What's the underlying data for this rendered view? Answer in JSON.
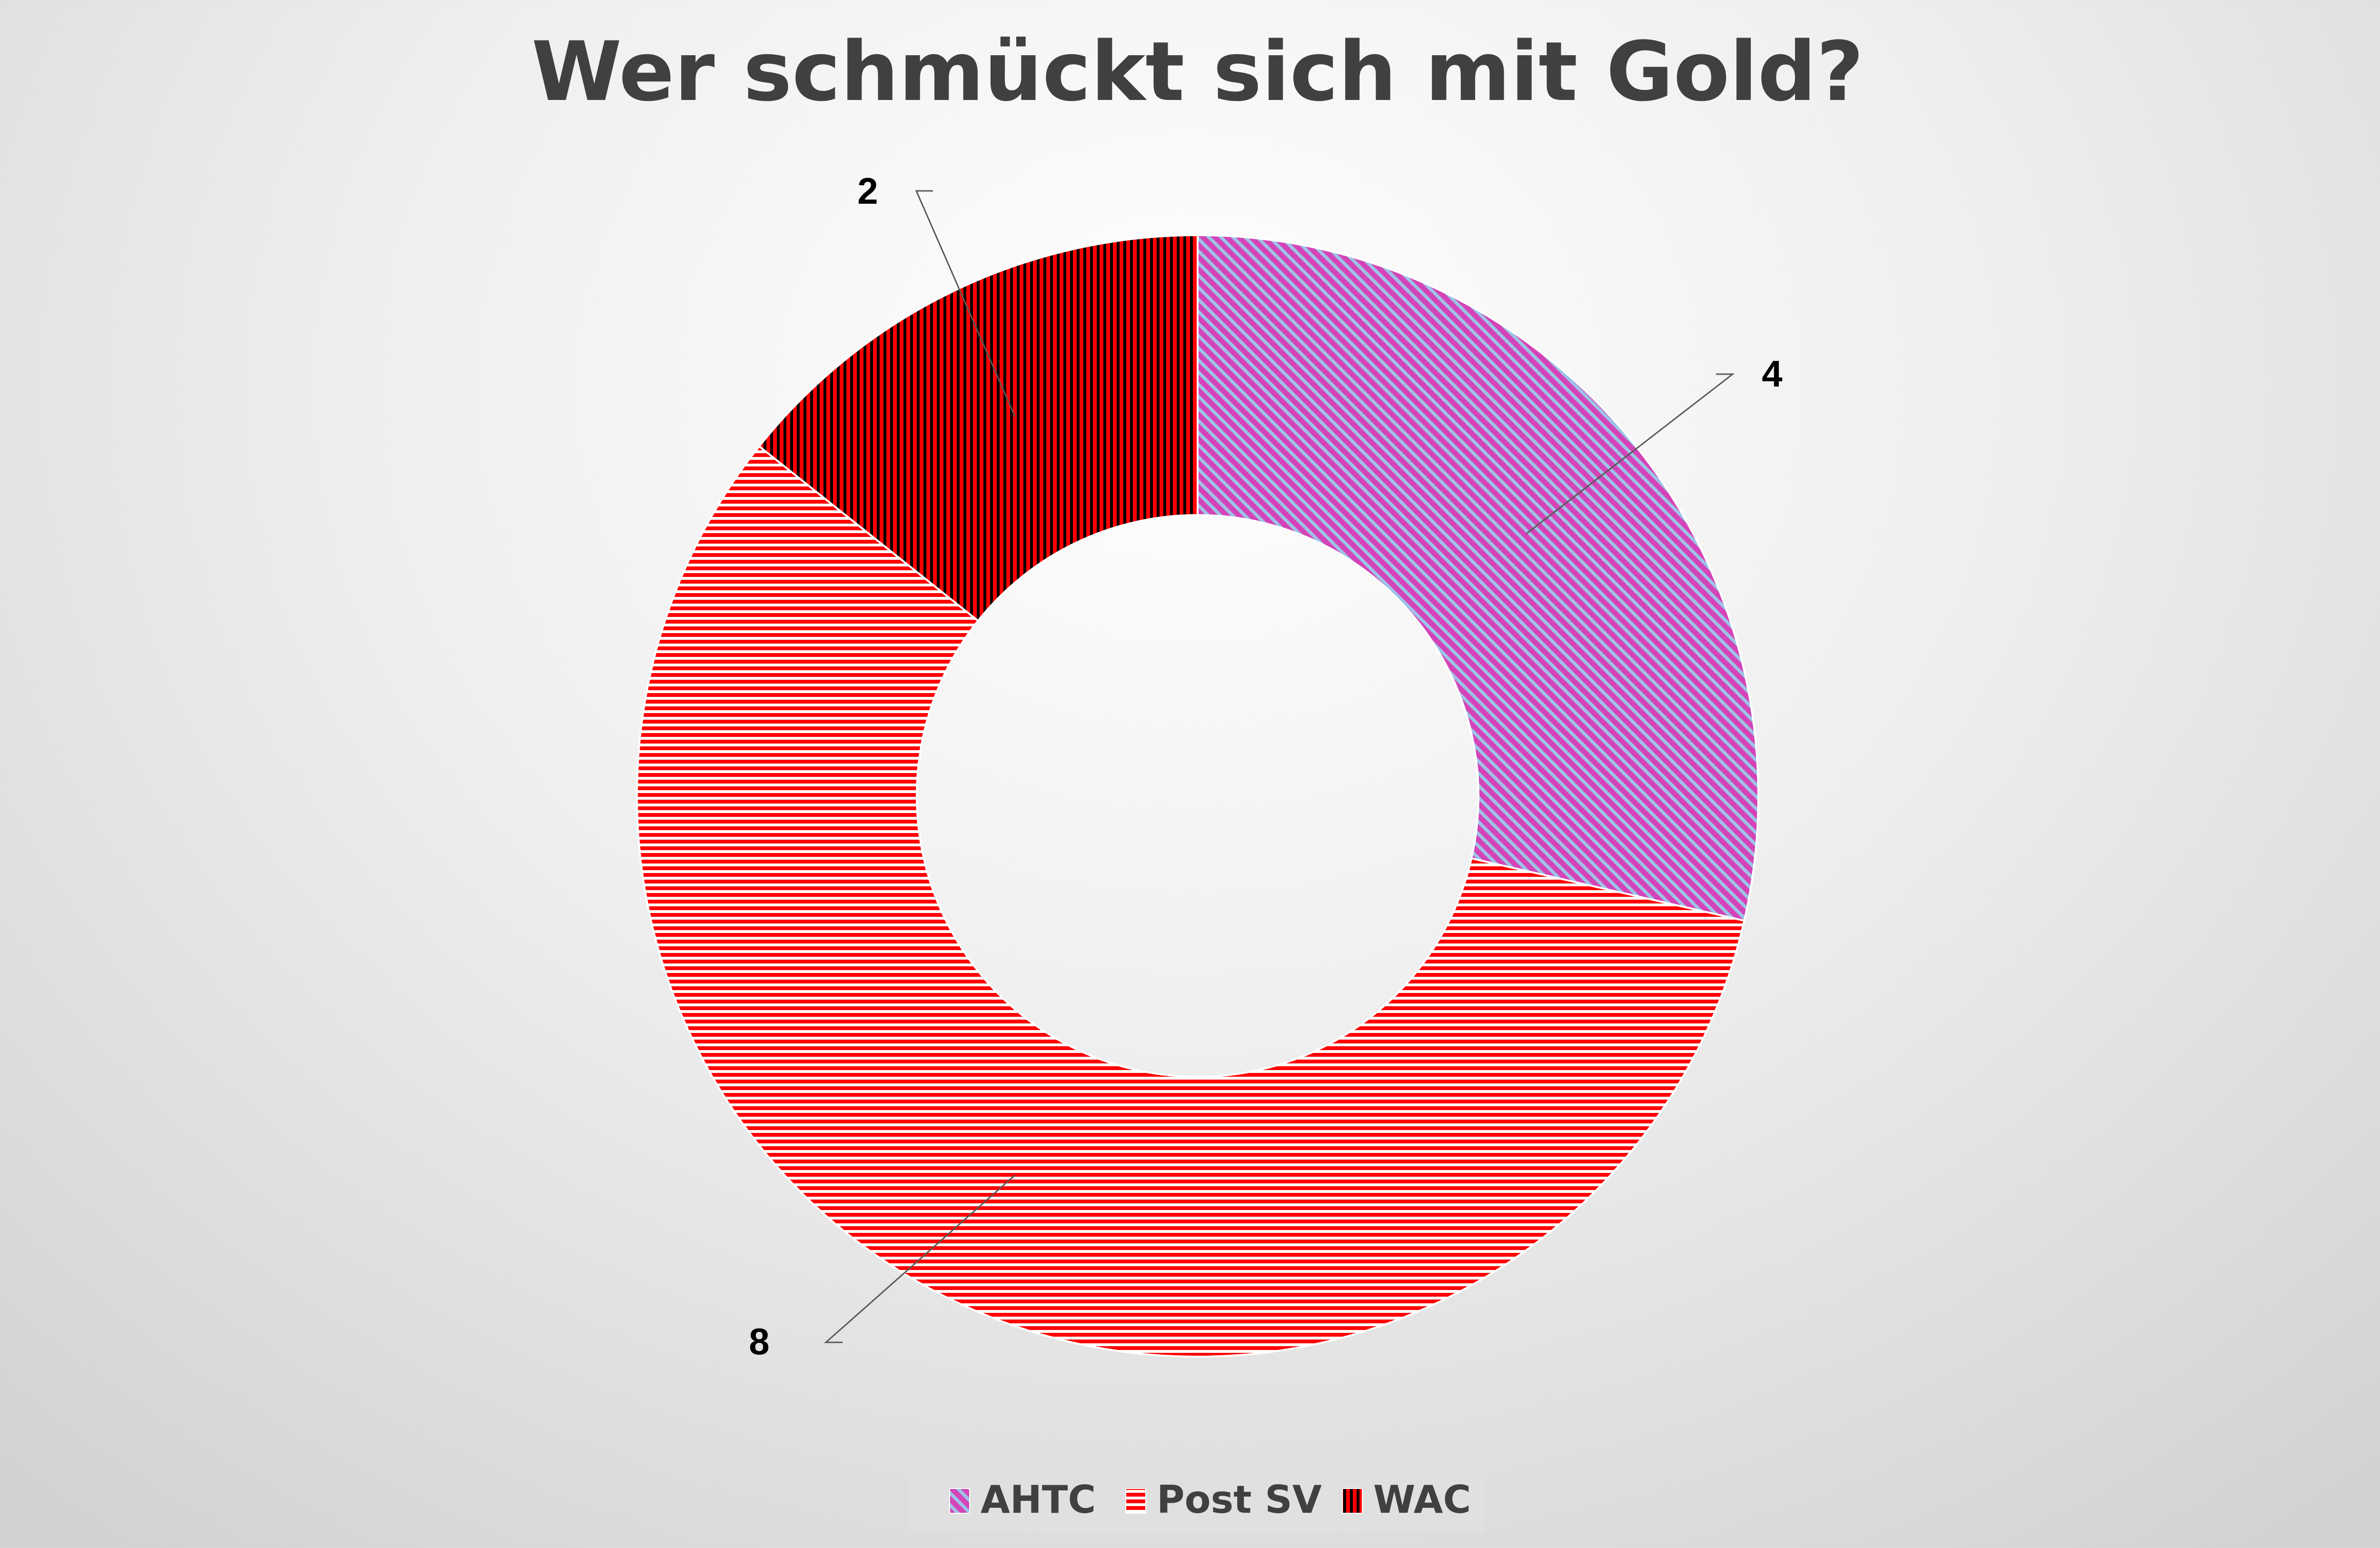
{
  "chart_data": {
    "type": "pie",
    "variant": "doughnut",
    "title": "Wer schmückt sich mit Gold?",
    "categories": [
      "AHTC",
      "Post SV",
      "WAC"
    ],
    "values": [
      4,
      8,
      2
    ],
    "data_labels": [
      "4",
      "8",
      "2"
    ],
    "colors": {
      "AHTC": [
        "#d444b8",
        "#9dc3e6"
      ],
      "Post SV": [
        "#ff0000",
        "#ffffff"
      ],
      "WAC": [
        "#ff0000",
        "#000000"
      ]
    },
    "patterns": {
      "AHTC": "diagonal",
      "Post SV": "horizontal",
      "WAC": "vertical"
    },
    "legend_position": "bottom",
    "start_angle": 0,
    "direction": "clockwise"
  }
}
